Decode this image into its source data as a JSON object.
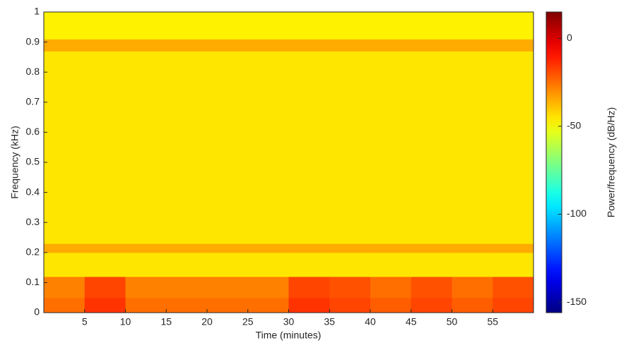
{
  "chart_data": {
    "type": "heatmap",
    "x_label": "Time (minutes)",
    "y_label": "Frequency (kHz)",
    "x_edges": [
      0,
      5,
      10,
      15,
      20,
      25,
      30,
      35,
      40,
      45,
      50,
      55,
      60
    ],
    "y_edges": [
      0,
      0.05,
      0.12,
      0.2,
      0.23,
      0.87,
      0.91,
      1
    ],
    "values": [
      [
        -25,
        -15,
        -25,
        -25,
        -25,
        -25,
        -15,
        -18,
        -22,
        -18,
        -22,
        -18
      ],
      [
        -28,
        -18,
        -28,
        -28,
        -28,
        -28,
        -18,
        -20,
        -25,
        -20,
        -25,
        -20
      ],
      [
        -45,
        -45,
        -45,
        -45,
        -45,
        -45,
        -45,
        -45,
        -45,
        -45,
        -45,
        -45
      ],
      [
        -35,
        -35,
        -35,
        -35,
        -35,
        -35,
        -35,
        -35,
        -35,
        -35,
        -35,
        -35
      ],
      [
        -45,
        -45,
        -45,
        -45,
        -45,
        -45,
        -45,
        -45,
        -45,
        -45,
        -45,
        -45
      ],
      [
        -35,
        -35,
        -35,
        -35,
        -35,
        -35,
        -35,
        -35,
        -35,
        -35,
        -35,
        -35
      ],
      [
        -47,
        -47,
        -47,
        -47,
        -47,
        -47,
        -47,
        -47,
        -47,
        -47,
        -47,
        -47
      ]
    ],
    "xlim": [
      0,
      60
    ],
    "ylim": [
      0,
      1
    ],
    "xticks": [
      5,
      10,
      15,
      20,
      25,
      30,
      35,
      40,
      45,
      50,
      55
    ],
    "yticks": [
      0,
      0.1,
      0.2,
      0.3,
      0.4,
      0.5,
      0.6,
      0.7,
      0.8,
      0.9,
      1
    ],
    "colormap": "jet",
    "colorbar": {
      "label": "Power/frequency (dB/Hz)",
      "clim": [
        -156,
        15
      ],
      "ticks": [
        0,
        -50,
        -100,
        -150
      ]
    }
  }
}
